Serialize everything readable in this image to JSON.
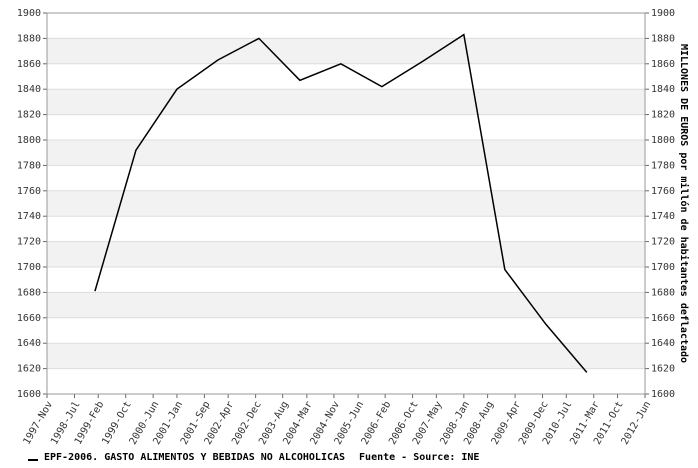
{
  "chart_data": {
    "type": "line",
    "x": [
      1999,
      2000,
      2001,
      2002,
      2003,
      2004,
      2005,
      2006,
      2007,
      2008,
      2009,
      2010,
      2011
    ],
    "series": [
      {
        "name": "EPF-2006. GASTO ALIMENTOS Y BEBIDAS NO ALCOHOLICAS",
        "color": "#000000",
        "values": [
          1681,
          1792,
          1840,
          1863,
          1880,
          1847,
          1860,
          1842,
          1862,
          1883,
          1698,
          1655,
          1617
        ]
      }
    ],
    "source": "Fuente - Source: INE",
    "y2_label": "MILLONES DE EUROS por millón de habitantes deflactado",
    "xlim": [
      1997.83,
      2012.42
    ],
    "xticks": [
      {
        "value": 1997.83,
        "label": "1997-Nov"
      },
      {
        "value": 1998.5,
        "label": "1998-Jul"
      },
      {
        "value": 1999.08,
        "label": "1999-Feb"
      },
      {
        "value": 1999.75,
        "label": "1999-Oct"
      },
      {
        "value": 2000.42,
        "label": "2000-Jun"
      },
      {
        "value": 2001.0,
        "label": "2001-Jan"
      },
      {
        "value": 2001.67,
        "label": "2001-Sep"
      },
      {
        "value": 2002.25,
        "label": "2002-Apr"
      },
      {
        "value": 2002.92,
        "label": "2002-Dec"
      },
      {
        "value": 2003.58,
        "label": "2003-Aug"
      },
      {
        "value": 2004.17,
        "label": "2004-Mar"
      },
      {
        "value": 2004.83,
        "label": "2004-Nov"
      },
      {
        "value": 2005.42,
        "label": "2005-Jun"
      },
      {
        "value": 2006.08,
        "label": "2006-Feb"
      },
      {
        "value": 2006.75,
        "label": "2006-Oct"
      },
      {
        "value": 2007.33,
        "label": "2007-May"
      },
      {
        "value": 2008.0,
        "label": "2008-Jan"
      },
      {
        "value": 2008.58,
        "label": "2008-Aug"
      },
      {
        "value": 2009.25,
        "label": "2009-Apr"
      },
      {
        "value": 2009.92,
        "label": "2009-Dec"
      },
      {
        "value": 2010.5,
        "label": "2010-Jul"
      },
      {
        "value": 2011.17,
        "label": "2011-Mar"
      },
      {
        "value": 2011.75,
        "label": "2011-Oct"
      },
      {
        "value": 2012.42,
        "label": "2012-Jun"
      }
    ],
    "ylim": [
      1600,
      1900
    ],
    "yticks": [
      1600,
      1620,
      1640,
      1660,
      1680,
      1700,
      1720,
      1740,
      1760,
      1780,
      1800,
      1820,
      1840,
      1860,
      1880,
      1900
    ],
    "y2lim": [
      1600,
      1900
    ],
    "y2ticks": [
      1600,
      1620,
      1640,
      1660,
      1680,
      1700,
      1720,
      1740,
      1760,
      1780,
      1800,
      1820,
      1840,
      1860,
      1880,
      1900
    ],
    "grid": true,
    "bands": true
  }
}
